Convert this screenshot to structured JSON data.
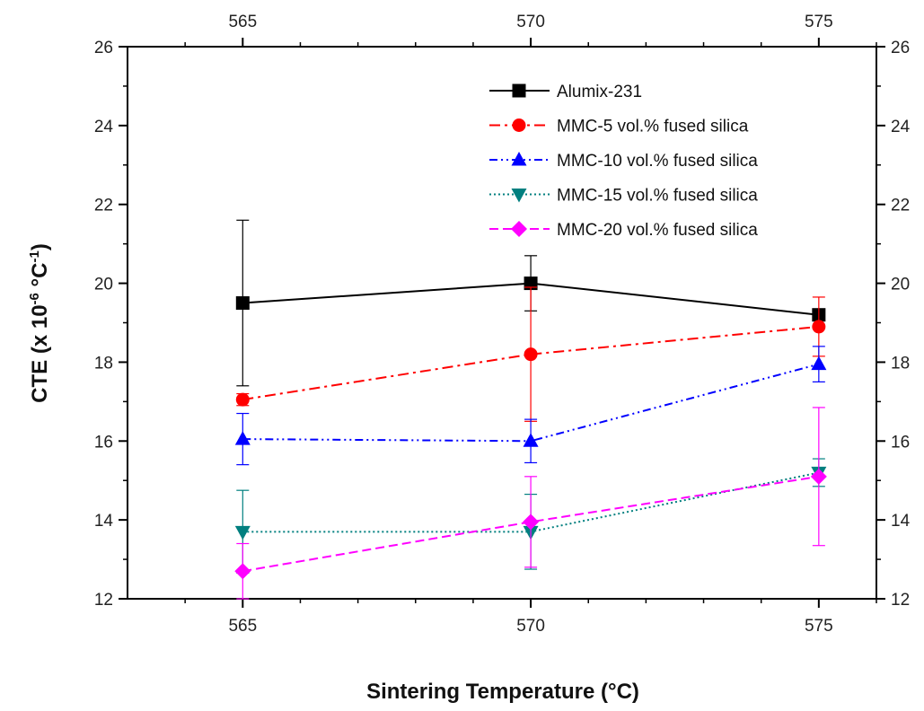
{
  "chart_data": {
    "type": "line",
    "title": "",
    "xlabel": "Sintering Temperature (°C)",
    "ylabel_parts": {
      "prefix": "CTE (x 10",
      "exp1": "-6",
      "middle": " °C",
      "exp2": "-1",
      "suffix": ")"
    },
    "xlim": [
      563,
      576
    ],
    "ylim": [
      12,
      26
    ],
    "x_ticks": [
      565,
      570,
      575
    ],
    "x_tick_labels": [
      "565",
      "570",
      "575"
    ],
    "x_minor_ticks": [
      564,
      566,
      567,
      568,
      569,
      571,
      572,
      573,
      574,
      576
    ],
    "y_ticks": [
      12,
      14,
      16,
      18,
      20,
      22,
      24,
      26
    ],
    "y_tick_labels": [
      "12",
      "14",
      "16",
      "18",
      "20",
      "22",
      "24",
      "26"
    ],
    "y_minor_ticks": [
      13,
      15,
      17,
      19,
      21,
      23,
      25
    ],
    "top_axis_labels": true,
    "right_axis_labels": true,
    "grid": false,
    "legend_position": "top-right",
    "x": [
      565,
      570,
      575
    ],
    "series": [
      {
        "name": "Alumix-231",
        "values": [
          19.5,
          20.0,
          19.2
        ],
        "errors": [
          2.1,
          0.7,
          0.1
        ],
        "color": "#000000",
        "marker": "square",
        "dash": ""
      },
      {
        "name": "MMC-5 vol.% fused silica",
        "values": [
          17.05,
          18.2,
          18.9
        ],
        "errors": [
          0.15,
          1.7,
          0.75
        ],
        "color": "#ff0000",
        "marker": "circle",
        "dash": "12,5,3,5"
      },
      {
        "name": "MMC-10 vol.% fused silica",
        "values": [
          16.05,
          16.0,
          17.95
        ],
        "errors": [
          0.65,
          0.55,
          0.45
        ],
        "color": "#0000ff",
        "marker": "triangle-up",
        "dash": "9,4,2,4,2,4"
      },
      {
        "name": "MMC-15 vol.% fused silica",
        "values": [
          13.7,
          13.7,
          15.2
        ],
        "errors": [
          1.05,
          0.95,
          0.35
        ],
        "color": "#007f7f",
        "marker": "triangle-down",
        "dash": "2,3"
      },
      {
        "name": "MMC-20 vol.% fused silica",
        "values": [
          12.7,
          13.95,
          15.1
        ],
        "errors": [
          0.7,
          1.15,
          1.75
        ],
        "color": "#ff00ff",
        "marker": "diamond",
        "dash": "10,5"
      }
    ]
  }
}
